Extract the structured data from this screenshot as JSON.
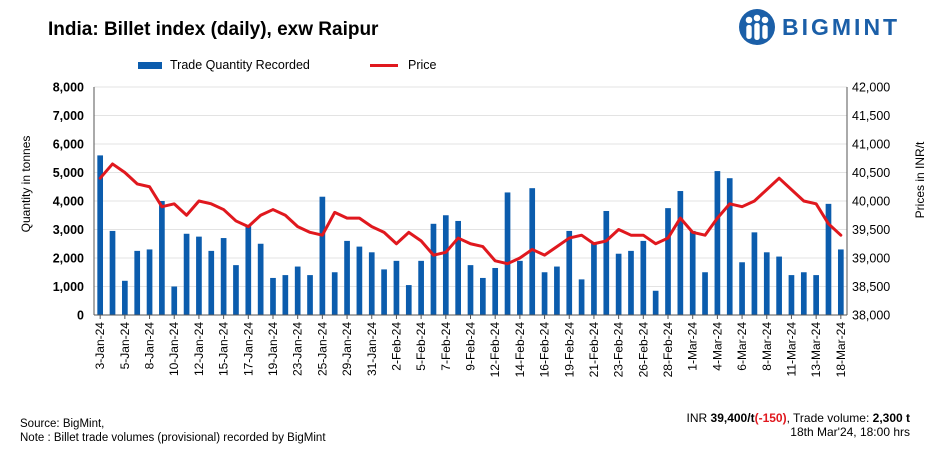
{
  "header": {
    "title": "India: Billet index (daily), exw Raipur",
    "logo_text": "BIGMINT"
  },
  "footer": {
    "source": "Source: BigMint,",
    "note": "Note : Billet trade volumes (provisional) recorded by BigMint",
    "price_prefix": "INR ",
    "price_value": "39,400/t",
    "price_change": "(-150)",
    "volume_label": ", Trade volume: ",
    "volume_value": "2,300 t",
    "timestamp": "18th Mar'24, 18:00 hrs"
  },
  "colors": {
    "bar": "#0b5cad",
    "line": "#e0181e",
    "brand": "#1b5fa8"
  },
  "chart_data": {
    "type": "bar+line",
    "title": "India: Billet index (daily), exw Raipur",
    "ylabel_left": "Quantity in tonnes",
    "ylabel_right": "Prices in INR/t",
    "ylim_left": [
      0,
      8000
    ],
    "ylim_right": [
      38000,
      42000
    ],
    "yticks_left": [
      "0",
      "1,000",
      "2,000",
      "3,000",
      "4,000",
      "5,000",
      "6,000",
      "7,000",
      "8,000"
    ],
    "yticks_right": [
      "38,000",
      "38,500",
      "39,000",
      "39,500",
      "40,000",
      "40,500",
      "41,000",
      "41,500",
      "42,000"
    ],
    "xtick_labels": [
      "3-Jan-24",
      "5-Jan-24",
      "8-Jan-24",
      "10-Jan-24",
      "12-Jan-24",
      "15-Jan-24",
      "17-Jan-24",
      "19-Jan-24",
      "23-Jan-24",
      "25-Jan-24",
      "29-Jan-24",
      "31-Jan-24",
      "2-Feb-24",
      "5-Feb-24",
      "7-Feb-24",
      "9-Feb-24",
      "12-Feb-24",
      "14-Feb-24",
      "16-Feb-24",
      "19-Feb-24",
      "21-Feb-24",
      "23-Feb-24",
      "26-Feb-24",
      "28-Feb-24",
      "1-Mar-24",
      "4-Mar-24",
      "6-Mar-24",
      "8-Mar-24",
      "11-Mar-24",
      "13-Mar-24",
      "18-Mar-24"
    ],
    "series": [
      {
        "name": "Trade Quantity Recorded",
        "kind": "bar",
        "axis": "left",
        "values": [
          5600,
          2950,
          1200,
          2250,
          2300,
          4000,
          1000,
          2850,
          2750,
          2250,
          2700,
          1750,
          3150,
          2500,
          1300,
          1400,
          1700,
          1400,
          4150,
          1500,
          2600,
          2400,
          2200,
          1600,
          1900,
          1050,
          1900,
          3200,
          3500,
          3300,
          1750,
          1300,
          1650,
          4300,
          1900,
          4450,
          1500,
          1700,
          2950,
          1250,
          2550,
          3650,
          2150,
          2250,
          2600,
          850,
          3750,
          4350,
          2950,
          1500,
          5050,
          4800,
          1850,
          2900,
          2200,
          2050,
          1400,
          1500,
          1400,
          3900,
          2300
        ]
      },
      {
        "name": "Price",
        "kind": "line",
        "axis": "right",
        "values": [
          40400,
          40650,
          40500,
          40300,
          40250,
          39900,
          39950,
          39750,
          40000,
          39950,
          39850,
          39650,
          39550,
          39750,
          39850,
          39750,
          39550,
          39450,
          39400,
          39800,
          39700,
          39700,
          39550,
          39450,
          39250,
          39450,
          39300,
          39050,
          39100,
          39350,
          39250,
          39200,
          38950,
          38900,
          39000,
          39150,
          39050,
          39200,
          39350,
          39400,
          39250,
          39300,
          39500,
          39400,
          39400,
          39250,
          39350,
          39700,
          39450,
          39400,
          39700,
          39950,
          39900,
          40000,
          40200,
          40400,
          40200,
          40000,
          39950,
          39600,
          39400
        ]
      }
    ]
  }
}
